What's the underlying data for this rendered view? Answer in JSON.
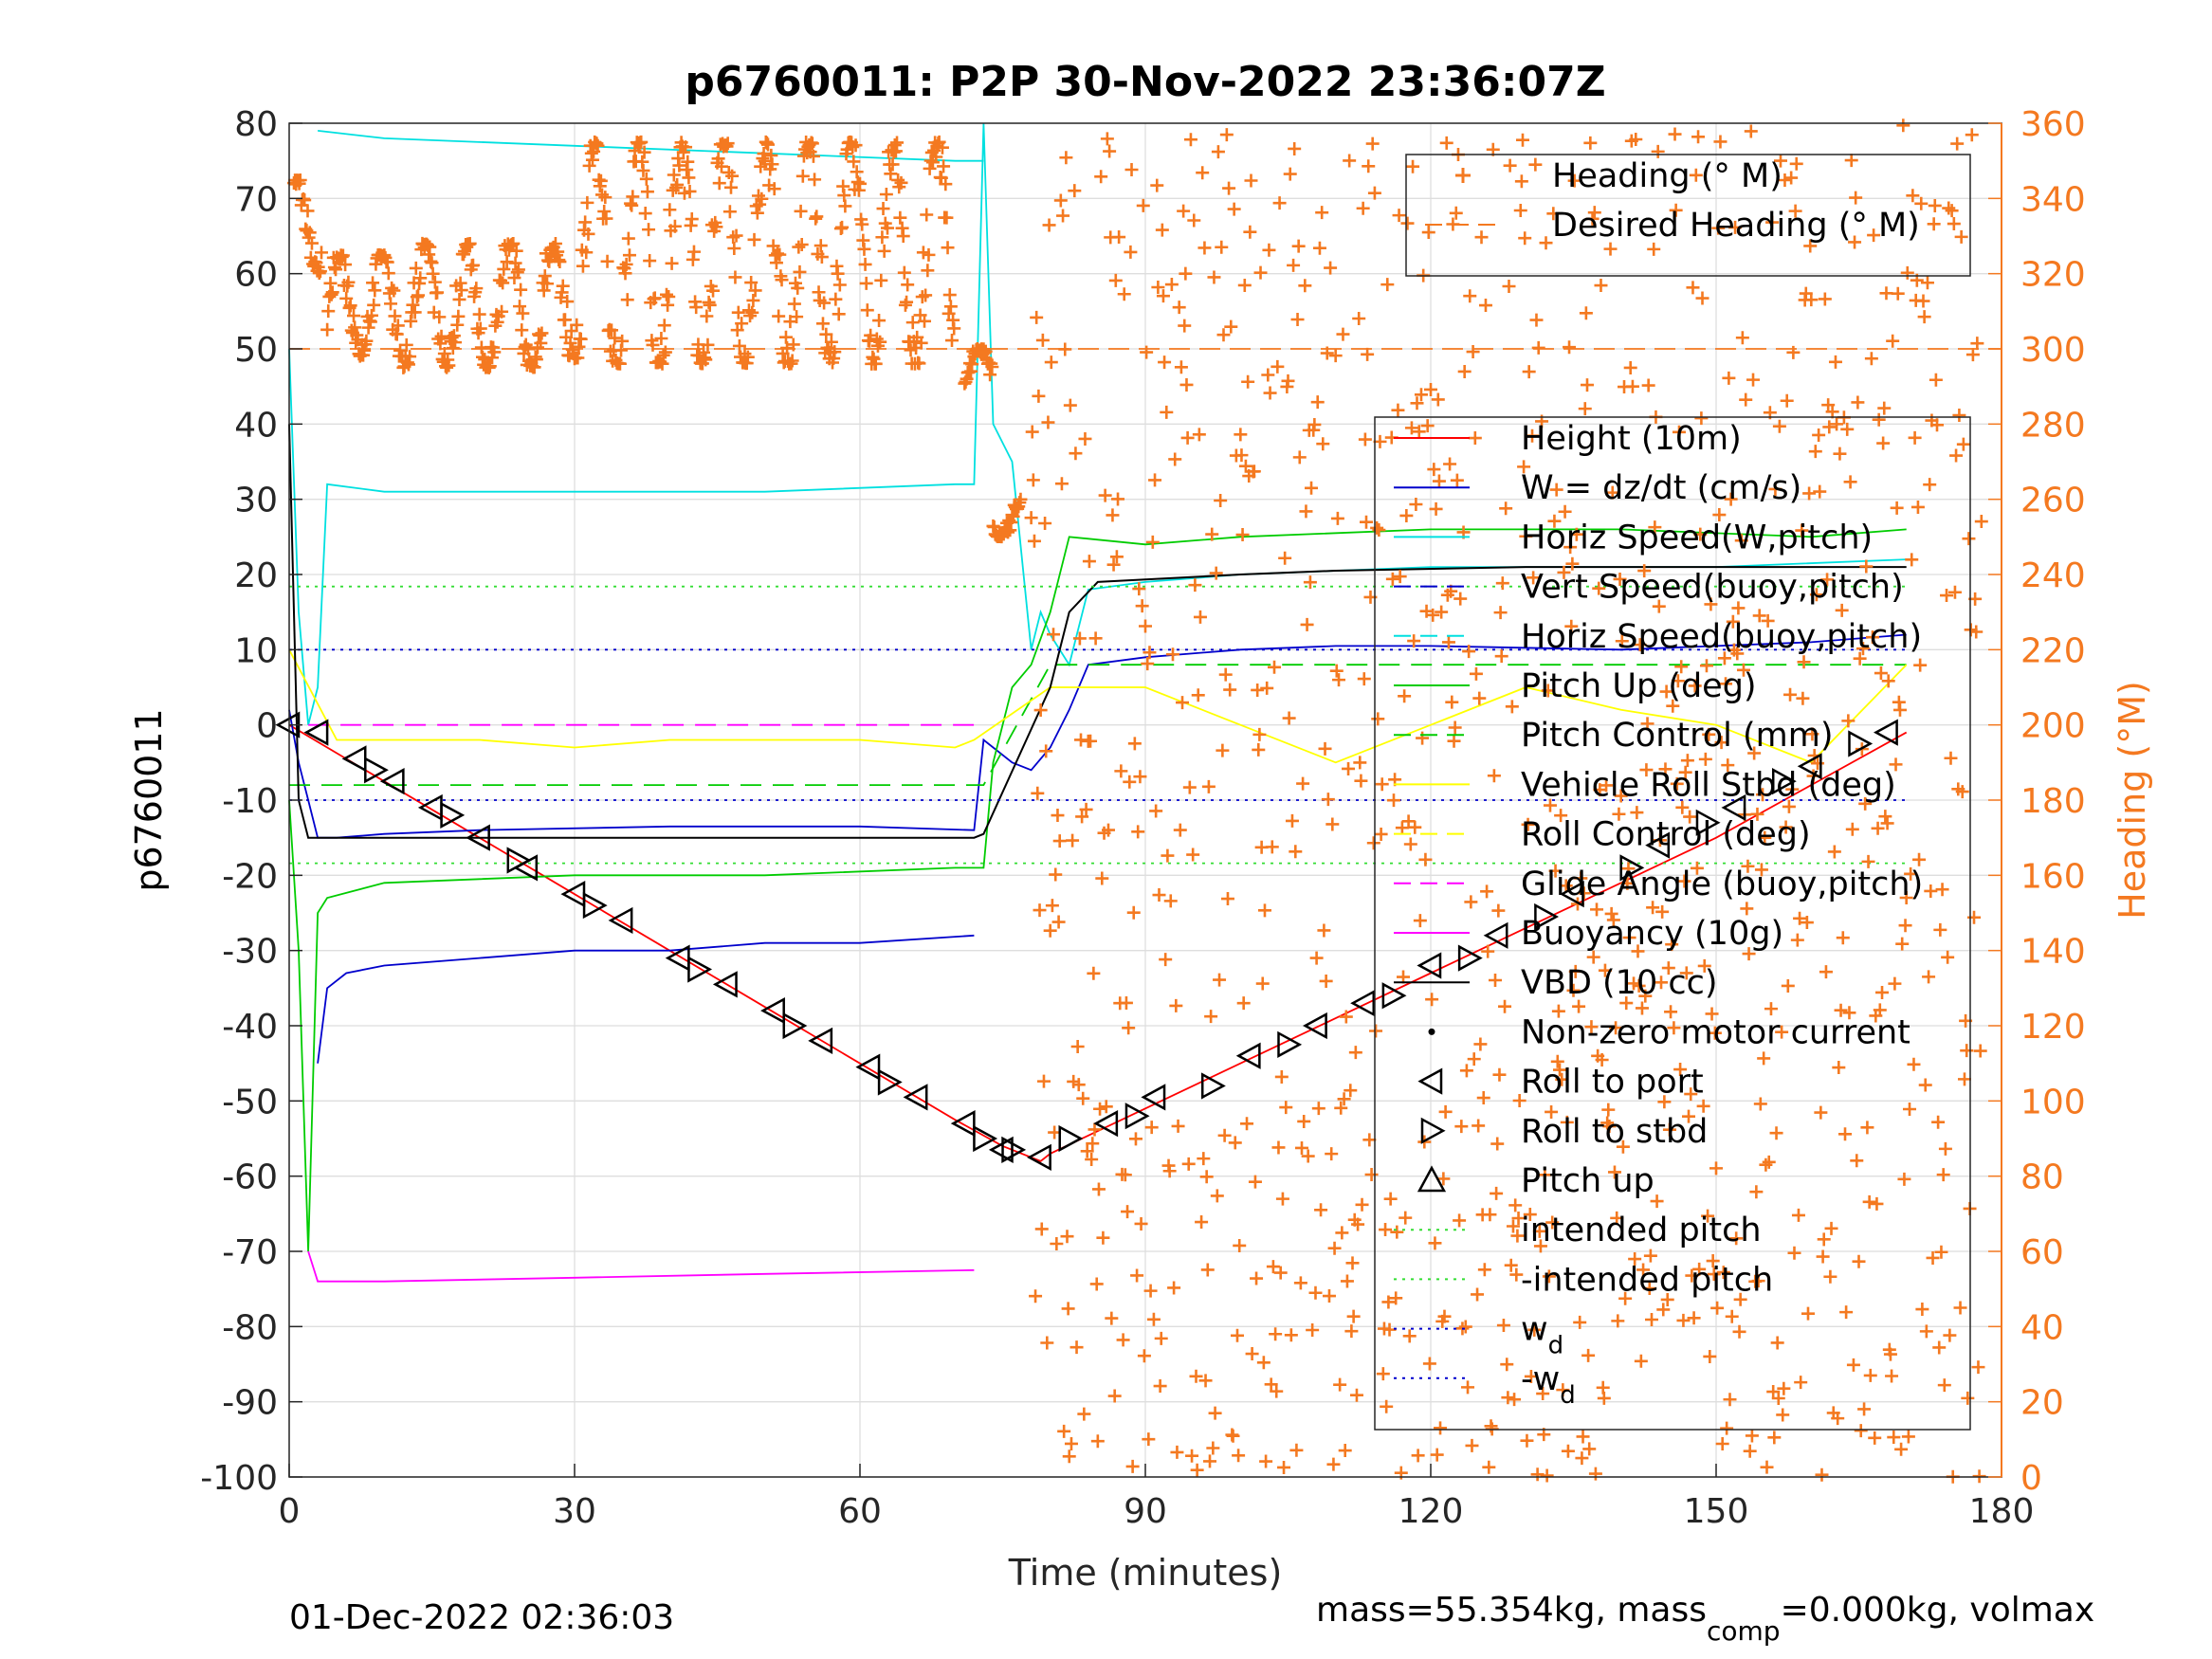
{
  "chart_data": {
    "type": "line",
    "title": "p6760011: P2P 30-Nov-2022 23:36:07Z",
    "xlabel": "Time (minutes)",
    "ylabel": "p6760011",
    "y2label": "Heading (°M)",
    "xlim": [
      0,
      180
    ],
    "ylim": [
      -100,
      80
    ],
    "y2lim": [
      0,
      360
    ],
    "xticks": [
      "0",
      "30",
      "60",
      "90",
      "120",
      "150",
      "180"
    ],
    "yticks": [
      "80",
      "70",
      "60",
      "50",
      "40",
      "30",
      "20",
      "10",
      "0",
      "-10",
      "-20",
      "-30",
      "-40",
      "-50",
      "-60",
      "-70",
      "-80",
      "-90",
      "-100"
    ],
    "y2ticks": [
      "360",
      "340",
      "320",
      "300",
      "280",
      "260",
      "240",
      "220",
      "200",
      "180",
      "160",
      "140",
      "120",
      "100",
      "80",
      "60",
      "40",
      "20",
      "0"
    ],
    "grid": true,
    "footer_left": "01-Dec-2022 02:36:03",
    "footer_right": "mass=55.354kg, mass",
    "footer_right_sub": "comp",
    "footer_right_tail": "=0.000kg, volmax",
    "legend_heading": [
      {
        "name": "Heading (° M)",
        "color": "#f47920",
        "style": "marker-plus"
      },
      {
        "name": "Desired Heading (° M)",
        "color": "#f47920",
        "style": "dashed"
      }
    ],
    "legend_main": [
      {
        "name": "Height (10m)",
        "color": "#ff0000",
        "style": "solid"
      },
      {
        "name": "W = dz/dt (cm/s)",
        "color": "#0000cc",
        "style": "solid"
      },
      {
        "name": "Horiz Speed(W,pitch)",
        "color": "#00e0e0",
        "style": "solid"
      },
      {
        "name": "Vert Speed(buoy,pitch)",
        "color": "#0000cc",
        "style": "dashed"
      },
      {
        "name": "Horiz Speed(buoy,pitch)",
        "color": "#00e0e0",
        "style": "dashed"
      },
      {
        "name": "Pitch Up (deg)",
        "color": "#00cc00",
        "style": "solid"
      },
      {
        "name": "Pitch Control (mm)",
        "color": "#00cc00",
        "style": "dashed"
      },
      {
        "name": "Vehicle Roll Stbd (deg)",
        "color": "#ffff00",
        "style": "solid"
      },
      {
        "name": "Roll Control (deg)",
        "color": "#ffff00",
        "style": "dashed"
      },
      {
        "name": "Glide Angle (buoy,pitch)",
        "color": "#ff00ff",
        "style": "dashed"
      },
      {
        "name": "Buoyancy (10g)",
        "color": "#ff00ff",
        "style": "solid"
      },
      {
        "name": "VBD (10 cc)",
        "color": "#000000",
        "style": "solid"
      },
      {
        "name": "Non-zero motor current",
        "color": "#000000",
        "style": "dot"
      },
      {
        "name": "Roll to port",
        "color": "#000000",
        "style": "tri-left"
      },
      {
        "name": "Roll to stbd",
        "color": "#000000",
        "style": "tri-right"
      },
      {
        "name": "Pitch up",
        "color": "#000000",
        "style": "tri-up"
      },
      {
        "name": "intended pitch",
        "color": "#33dd33",
        "style": "dotted"
      },
      {
        "name": "-intended pitch",
        "color": "#33dd33",
        "style": "dotted"
      },
      {
        "name": "w",
        "sub": "d",
        "color": "#0000cc",
        "style": "dotted"
      },
      {
        "name": "-w",
        "sub": "d",
        "color": "#0000cc",
        "style": "dotted"
      }
    ],
    "series": [
      {
        "name": "Height (10m)",
        "color": "#ff0000",
        "x": [
          0,
          10,
          20,
          30,
          40,
          50,
          60,
          70,
          75,
          79,
          80,
          90,
          100,
          110,
          120,
          130,
          140,
          150,
          160,
          170
        ],
        "y": [
          0,
          -7.5,
          -15,
          -22.5,
          -30,
          -37.5,
          -45,
          -52.5,
          -56,
          -58,
          -57,
          -51,
          -45,
          -39,
          -33,
          -27,
          -21,
          -15,
          -8,
          -1
        ]
      },
      {
        "name": "W = dz/dt (cm/s)",
        "color": "#0000cc",
        "x": [
          0,
          1,
          2,
          3,
          5,
          10,
          20,
          40,
          60,
          72,
          73,
          76,
          78,
          80,
          82,
          84,
          90,
          100,
          110,
          120,
          140,
          160,
          170
        ],
        "y": [
          2,
          -5,
          -10,
          -15,
          -15,
          -14.5,
          -14,
          -13.5,
          -13.5,
          -14,
          -2,
          -5,
          -6,
          -3,
          2,
          8,
          9,
          10,
          10.5,
          10.5,
          10,
          11,
          12
        ]
      },
      {
        "name": "Horiz Speed(W,pitch)",
        "color": "#00e0e0",
        "x": [
          0,
          1,
          2,
          3,
          4,
          10,
          30,
          50,
          70,
          72,
          73,
          74,
          76,
          78,
          79,
          80,
          82,
          84,
          90,
          100,
          120,
          150,
          170
        ],
        "y": [
          50,
          15,
          0,
          5,
          32,
          31,
          31,
          31,
          32,
          32,
          80,
          40,
          35,
          10,
          15,
          12,
          8,
          18,
          19,
          20,
          21,
          21,
          22
        ]
      },
      {
        "name": "Horiz Speed(W,pitch) top",
        "color": "#00e0e0",
        "x": [
          3,
          10,
          30,
          50,
          70,
          73
        ],
        "y": [
          79,
          78,
          77,
          76,
          75,
          75
        ]
      },
      {
        "name": "Vert Speed(buoy,pitch)",
        "color": "#0000cc",
        "x": [
          3,
          4,
          6,
          10,
          20,
          30,
          40,
          50,
          60,
          72
        ],
        "y": [
          -45,
          -35,
          -33,
          -32,
          -31,
          -30,
          -30,
          -29,
          -29,
          -28
        ]
      },
      {
        "name": "Pitch Up (deg)",
        "color": "#00cc00",
        "x": [
          0,
          1,
          2,
          3,
          4,
          10,
          30,
          50,
          70,
          73,
          74,
          76,
          78,
          80,
          82,
          90,
          100,
          120,
          140,
          160,
          170
        ],
        "y": [
          -10,
          -30,
          -70,
          -25,
          -23,
          -21,
          -20,
          -20,
          -19,
          -19,
          -5,
          5,
          8,
          15,
          25,
          24,
          25,
          26,
          26,
          25,
          26
        ]
      },
      {
        "name": "Pitch Control (mm)",
        "color": "#00cc00",
        "x": [
          0,
          73,
          80,
          170
        ],
        "y": [
          -8,
          -8,
          8,
          8
        ]
      },
      {
        "name": "Vehicle Roll Stbd (deg)",
        "color": "#ffff00",
        "x": [
          0,
          5,
          10,
          20,
          30,
          40,
          50,
          60,
          70,
          72,
          80,
          90,
          100,
          110,
          120,
          130,
          140,
          150,
          160,
          170
        ],
        "y": [
          10,
          -2,
          -2,
          -2,
          -3,
          -2,
          -2,
          -2,
          -3,
          -2,
          5,
          5,
          0,
          -5,
          0,
          5,
          2,
          0,
          -5,
          8
        ]
      },
      {
        "name": "Glide Angle (buoy,pitch)",
        "color": "#ff00ff",
        "x": [
          2,
          72
        ],
        "y": [
          0,
          0
        ]
      },
      {
        "name": "Buoyancy (10g)",
        "color": "#ff00ff",
        "x": [
          2,
          3,
          10,
          30,
          50,
          72
        ],
        "y": [
          -70,
          -74,
          -74,
          -73.5,
          -73,
          -72.5
        ]
      },
      {
        "name": "VBD (10 cc)",
        "color": "#000000",
        "x": [
          0,
          1,
          2,
          72,
          73,
          80,
          82,
          85,
          100,
          110,
          130,
          170
        ],
        "y": [
          40,
          -10,
          -15,
          -15,
          -14.5,
          5,
          15,
          19,
          20,
          20.5,
          21,
          21
        ]
      },
      {
        "name": "intended pitch",
        "color": "#33dd33",
        "x": [
          0,
          170
        ],
        "y": [
          18.4,
          18.4
        ]
      },
      {
        "name": "-intended pitch",
        "color": "#33dd33",
        "x": [
          0,
          170
        ],
        "y": [
          -18.4,
          -18.4
        ]
      },
      {
        "name": "w_d",
        "color": "#0000cc",
        "x": [
          0,
          170
        ],
        "y": [
          10,
          10
        ]
      },
      {
        "name": "-w_d",
        "color": "#0000cc",
        "x": [
          0,
          170
        ],
        "y": [
          -10,
          -10
        ]
      },
      {
        "name": "Desired Heading (° M)",
        "color": "#f47920",
        "axis": "right",
        "x": [
          0,
          180
        ],
        "y": [
          300,
          300
        ]
      }
    ],
    "roll_port_markers": {
      "x": [
        0,
        3,
        7,
        11,
        15,
        20,
        25,
        30,
        35,
        41,
        46,
        51,
        56,
        61,
        66,
        71,
        75,
        79,
        86,
        91,
        101,
        108,
        113,
        120,
        127,
        135,
        144,
        152,
        160,
        168
      ],
      "y": [
        0,
        -1,
        -4.5,
        -7.5,
        -11,
        -15,
        -19,
        -22.5,
        -26,
        -31,
        -34.5,
        -38,
        -42,
        -45.5,
        -49.5,
        -53,
        -56.5,
        -57.5,
        -53,
        -49.5,
        -44,
        -40,
        -37,
        -32,
        -28,
        -22.5,
        -16,
        -11,
        -5.5,
        -1
      ]
    },
    "roll_stbd_markers": {
      "x": [
        9,
        17,
        24,
        32,
        43,
        53,
        63,
        73,
        76,
        82,
        89,
        97,
        105,
        116,
        124,
        132,
        141,
        149,
        157,
        165
      ],
      "y": [
        -6,
        -12,
        -18,
        -24,
        -32.5,
        -40,
        -47.5,
        -55,
        -56.5,
        -55,
        -52,
        -48,
        -42.5,
        -36,
        -31,
        -25.5,
        -19,
        -13,
        -7.5,
        -2.5
      ]
    },
    "heading_scatter": {
      "segments": [
        {
          "x0": 0.5,
          "x1": 3.5,
          "lo": 320,
          "hi": 345
        },
        {
          "x0": 4,
          "x1": 12,
          "lo": 298,
          "hi": 325
        },
        {
          "x0": 12,
          "x1": 29,
          "lo": 295,
          "hi": 328
        },
        {
          "x0": 29,
          "x1": 70,
          "lo": 296,
          "hi": 355
        },
        {
          "x0": 71,
          "x1": 74,
          "lo": 290,
          "hi": 300
        },
        {
          "x0": 74,
          "x1": 77,
          "lo": 250,
          "hi": 260
        },
        {
          "x0": 78,
          "x1": 178,
          "lo": 0,
          "hi": 360
        }
      ]
    }
  }
}
